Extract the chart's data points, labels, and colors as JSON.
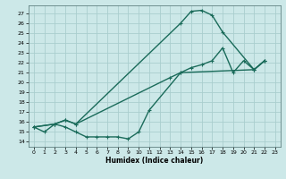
{
  "xlabel": "Humidex (Indice chaleur)",
  "bg_color": "#cce8e8",
  "grid_color": "#aacece",
  "line_color": "#1a6b5a",
  "xlim": [
    -0.5,
    23.5
  ],
  "ylim": [
    13.5,
    27.8
  ],
  "xticks": [
    0,
    1,
    2,
    3,
    4,
    5,
    6,
    7,
    8,
    9,
    10,
    11,
    12,
    13,
    14,
    15,
    16,
    17,
    18,
    19,
    20,
    21,
    22,
    23
  ],
  "yticks": [
    14,
    15,
    16,
    17,
    18,
    19,
    20,
    21,
    22,
    23,
    24,
    25,
    26,
    27
  ],
  "line1_x": [
    0,
    2,
    3,
    4,
    14,
    15,
    16,
    17,
    18,
    21,
    22
  ],
  "line1_y": [
    15.5,
    15.8,
    16.2,
    15.8,
    26.0,
    27.2,
    27.3,
    26.8,
    25.1,
    21.3,
    22.2
  ],
  "line2_x": [
    0,
    2,
    3,
    4,
    13,
    14,
    15,
    16,
    17,
    18,
    19,
    20,
    21,
    22
  ],
  "line2_y": [
    15.5,
    15.8,
    16.2,
    15.8,
    20.5,
    21.0,
    21.5,
    21.8,
    22.2,
    23.5,
    21.0,
    22.2,
    21.3,
    22.2
  ],
  "line3_x": [
    0,
    1,
    2,
    3,
    4,
    5,
    6,
    7,
    8,
    9,
    10,
    11,
    14,
    21,
    22
  ],
  "line3_y": [
    15.5,
    15.0,
    15.8,
    15.5,
    15.0,
    14.5,
    14.5,
    14.5,
    14.5,
    14.3,
    15.0,
    17.2,
    21.0,
    21.3,
    22.2
  ]
}
